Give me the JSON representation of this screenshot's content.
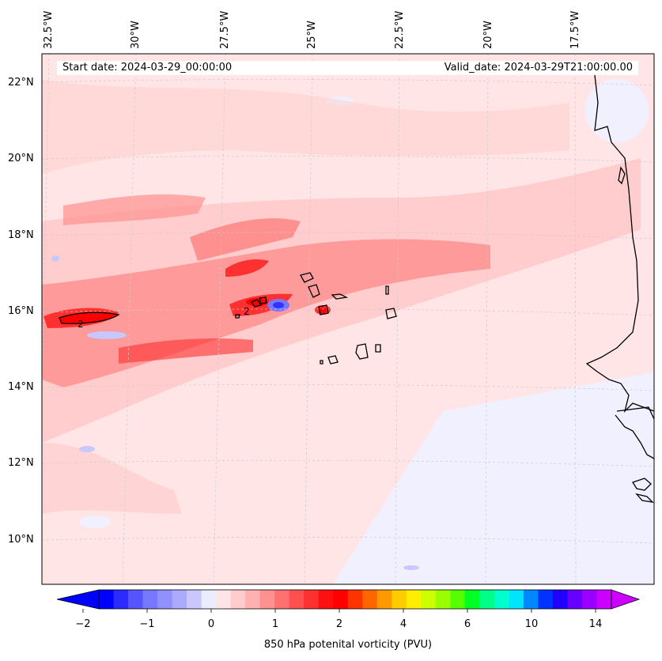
{
  "map": {
    "start_label": "Start date: 2024-03-29_00:00:00",
    "valid_label": "Valid_date: 2024-03-29T21:00:00.00",
    "lon_labels": [
      "32.5°W",
      "30°W",
      "27.5°W",
      "25°W",
      "22.5°W",
      "20°W",
      "17.5°W"
    ],
    "lat_labels": [
      "22°N",
      "20°N",
      "18°N",
      "16°N",
      "14°N",
      "12°N",
      "10°N"
    ],
    "contour_label": "2",
    "background_color": "#ffe5e5",
    "land_outline_color": "#000000"
  },
  "colorbar": {
    "title": "850 hPa potenital vorticity (PVU)",
    "ticks": [
      "−2",
      "−1",
      "0",
      "1",
      "2",
      "4",
      "6",
      "10",
      "14"
    ],
    "colors": [
      "#0000ff",
      "#2b2bff",
      "#5555ff",
      "#7777ff",
      "#9090ff",
      "#aaaaff",
      "#c8c8ff",
      "#ececff",
      "#ffe5e5",
      "#ffcccc",
      "#ffb0b0",
      "#ff9090",
      "#ff7070",
      "#ff5050",
      "#ff3030",
      "#ff1010",
      "#ff0000",
      "#ff3300",
      "#ff6600",
      "#ff9900",
      "#ffcc00",
      "#ffee00",
      "#ccff00",
      "#99ff00",
      "#55ff00",
      "#00ff22",
      "#00ff88",
      "#00ffcc",
      "#00e5ff",
      "#0088ff",
      "#0033ff",
      "#2200ff",
      "#6600ff",
      "#9900ff",
      "#cc00ff"
    ]
  }
}
